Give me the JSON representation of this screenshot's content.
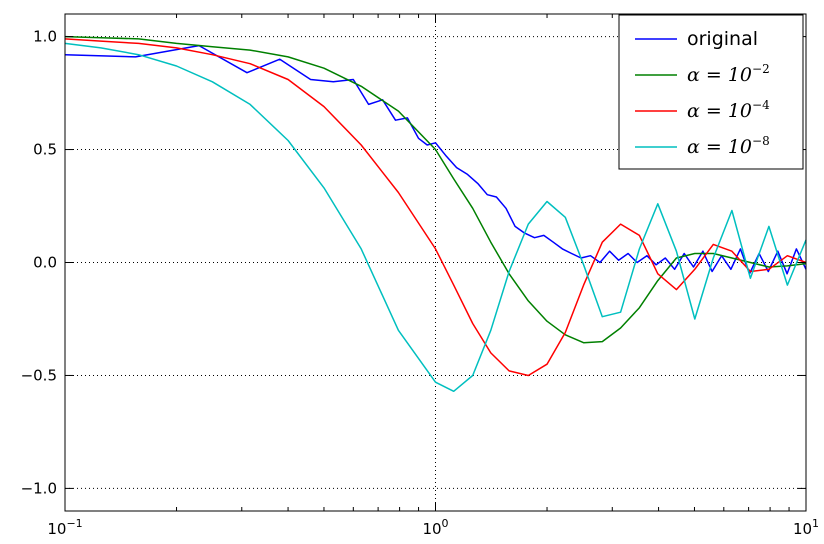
{
  "chart_data": {
    "type": "line",
    "xscale": "log",
    "xlim": [
      0.1,
      10
    ],
    "ylim": [
      -1.1,
      1.1
    ],
    "grid": true,
    "legend_position": "top-right",
    "x_ticks": [
      {
        "value": 0.1,
        "base": "10",
        "exp": "−1"
      },
      {
        "value": 1,
        "base": "10",
        "exp": "0"
      },
      {
        "value": 10,
        "base": "10",
        "exp": "1"
      }
    ],
    "y_ticks": [
      {
        "value": 1.0,
        "label": "1.0"
      },
      {
        "value": 0.5,
        "label": "0.5"
      },
      {
        "value": 0.0,
        "label": "0.0"
      },
      {
        "value": -0.5,
        "label": "−0.5"
      },
      {
        "value": -1.0,
        "label": "−1.0"
      }
    ],
    "series": [
      {
        "name": "original",
        "legend_plain": "original",
        "color": "#0000ff",
        "x": [
          0.1,
          0.155,
          0.23,
          0.31,
          0.38,
          0.46,
          0.53,
          0.6,
          0.66,
          0.72,
          0.78,
          0.84,
          0.9,
          0.95,
          1.0,
          1.07,
          1.14,
          1.22,
          1.3,
          1.38,
          1.46,
          1.55,
          1.64,
          1.74,
          1.85,
          1.96,
          2.08,
          2.2,
          2.33,
          2.47,
          2.62,
          2.78,
          2.95,
          3.12,
          3.31,
          3.5,
          3.72,
          3.94,
          4.17,
          4.42,
          4.69,
          4.97,
          5.27,
          5.58,
          5.92,
          6.27,
          6.65,
          7.04,
          7.47,
          7.91,
          8.39,
          8.89,
          9.42,
          10.0
        ],
        "y": [
          0.92,
          0.91,
          0.96,
          0.84,
          0.9,
          0.81,
          0.8,
          0.81,
          0.7,
          0.72,
          0.63,
          0.64,
          0.55,
          0.52,
          0.53,
          0.47,
          0.42,
          0.39,
          0.35,
          0.3,
          0.29,
          0.24,
          0.16,
          0.13,
          0.11,
          0.12,
          0.09,
          0.06,
          0.04,
          0.02,
          0.03,
          0.0,
          0.05,
          0.01,
          0.04,
          0.0,
          0.03,
          -0.01,
          0.02,
          -0.03,
          0.04,
          -0.02,
          0.05,
          -0.04,
          0.03,
          -0.03,
          0.06,
          -0.05,
          0.04,
          -0.04,
          0.05,
          -0.05,
          0.06,
          -0.03
        ]
      },
      {
        "name": "α = 10^-2",
        "legend_plain": "",
        "legend_base": "α = 10",
        "legend_exp": "−2",
        "color": "#008000",
        "x": [
          0.1,
          0.125,
          0.158,
          0.2,
          0.25,
          0.316,
          0.4,
          0.5,
          0.63,
          0.794,
          1.0,
          1.12,
          1.26,
          1.41,
          1.58,
          1.78,
          2.0,
          2.24,
          2.51,
          2.82,
          3.16,
          3.55,
          3.98,
          4.47,
          5.01,
          5.62,
          6.31,
          7.08,
          7.94,
          8.91,
          10.0
        ],
        "y": [
          1.0,
          0.995,
          0.99,
          0.97,
          0.955,
          0.94,
          0.91,
          0.86,
          0.78,
          0.67,
          0.5,
          0.37,
          0.24,
          0.09,
          -0.05,
          -0.17,
          -0.26,
          -0.32,
          -0.355,
          -0.35,
          -0.29,
          -0.2,
          -0.08,
          0.02,
          0.04,
          0.04,
          0.02,
          0.0,
          -0.02,
          -0.015,
          -0.005
        ]
      },
      {
        "name": "α = 10^-4",
        "legend_plain": "",
        "legend_base": "α = 10",
        "legend_exp": "−4",
        "color": "#ff0000",
        "x": [
          0.1,
          0.125,
          0.158,
          0.2,
          0.25,
          0.316,
          0.4,
          0.5,
          0.63,
          0.794,
          1.0,
          1.12,
          1.26,
          1.41,
          1.58,
          1.78,
          2.0,
          2.24,
          2.51,
          2.82,
          3.16,
          3.55,
          3.98,
          4.47,
          5.01,
          5.62,
          6.31,
          7.08,
          7.94,
          8.91,
          10.0
        ],
        "y": [
          0.99,
          0.98,
          0.97,
          0.95,
          0.92,
          0.88,
          0.81,
          0.69,
          0.52,
          0.31,
          0.06,
          -0.1,
          -0.27,
          -0.4,
          -0.48,
          -0.5,
          -0.45,
          -0.31,
          -0.1,
          0.09,
          0.17,
          0.12,
          -0.05,
          -0.12,
          -0.03,
          0.08,
          0.05,
          -0.04,
          -0.03,
          0.03,
          0.0
        ]
      },
      {
        "name": "α = 10^-8",
        "legend_plain": "",
        "legend_base": "α = 10",
        "legend_exp": "−8",
        "color": "#00bfbf",
        "x": [
          0.1,
          0.125,
          0.158,
          0.2,
          0.25,
          0.316,
          0.4,
          0.5,
          0.63,
          0.794,
          1.0,
          1.12,
          1.26,
          1.41,
          1.58,
          1.78,
          2.0,
          2.24,
          2.51,
          2.82,
          3.16,
          3.55,
          3.98,
          4.47,
          5.01,
          5.62,
          6.31,
          7.08,
          7.94,
          8.91,
          10.0
        ],
        "y": [
          0.97,
          0.95,
          0.92,
          0.87,
          0.8,
          0.7,
          0.54,
          0.33,
          0.06,
          -0.3,
          -0.53,
          -0.57,
          -0.5,
          -0.3,
          -0.04,
          0.17,
          0.27,
          0.2,
          -0.01,
          -0.24,
          -0.22,
          0.06,
          0.26,
          0.05,
          -0.25,
          0.02,
          0.23,
          -0.07,
          0.16,
          -0.1,
          0.1
        ]
      }
    ]
  }
}
